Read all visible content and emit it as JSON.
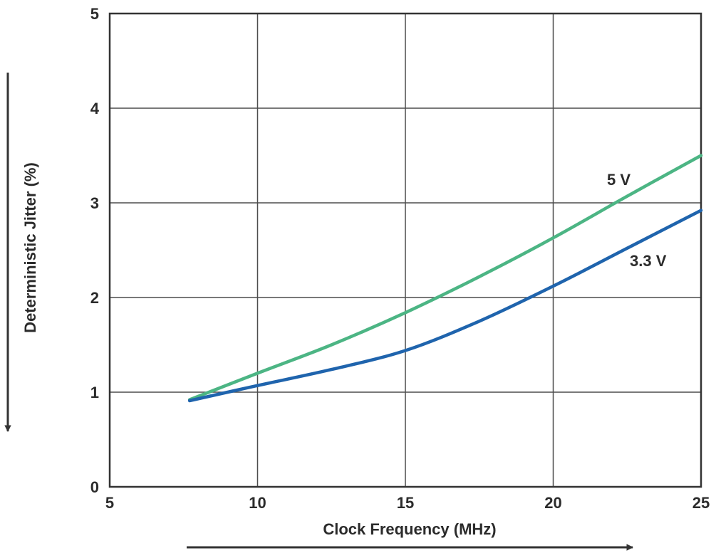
{
  "chart_data": {
    "type": "line",
    "xlabel": "Clock Frequency (MHz)",
    "ylabel": "Deterministic Jitter (%)",
    "xlim": [
      5,
      25
    ],
    "ylim": [
      0,
      5
    ],
    "x_ticks": [
      "5",
      "10",
      "15",
      "20",
      "25"
    ],
    "y_ticks": [
      "0",
      "1",
      "2",
      "3",
      "4",
      "5"
    ],
    "grid": true,
    "series": [
      {
        "name": "5 V",
        "color": "#4cb584",
        "x": [
          7.7,
          10,
          12.5,
          15,
          17.5,
          20,
          22.5,
          25
        ],
        "y": [
          0.92,
          1.2,
          1.5,
          1.84,
          2.22,
          2.63,
          3.07,
          3.5
        ]
      },
      {
        "name": "3.3 V",
        "color": "#1f64ad",
        "x": [
          7.7,
          10,
          12.5,
          15,
          17.5,
          20,
          22.5,
          25
        ],
        "y": [
          0.91,
          1.07,
          1.24,
          1.44,
          1.75,
          2.12,
          2.52,
          2.92
        ]
      }
    ],
    "annotations": [
      "5 V",
      "3.3 V"
    ],
    "axis_line_color": "#333333",
    "grid_color": "#4d4d4d"
  }
}
